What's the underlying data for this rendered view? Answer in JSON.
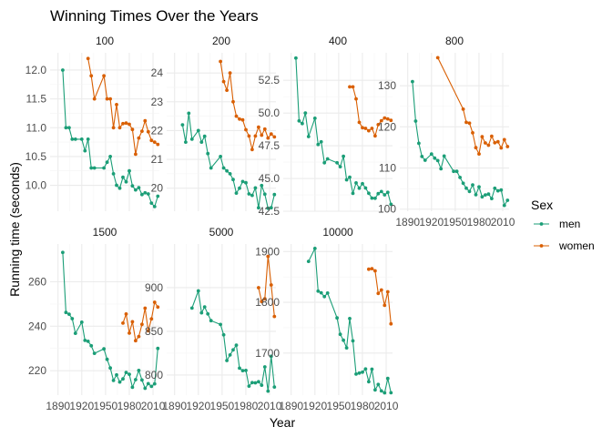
{
  "chart_data": {
    "type": "line",
    "title": "Winning Times Over the Years",
    "xlabel": "Year",
    "ylabel": "Running time (seconds)",
    "legend": {
      "title": "Sex",
      "position": "right"
    },
    "grid": true,
    "colors": {
      "men": "#1b9e77",
      "women": "#d95f02"
    },
    "x_ticks": [
      "1890",
      "1920",
      "1950",
      "1980",
      "2010"
    ],
    "xlim": [
      1880,
      2018
    ],
    "panels": [
      {
        "name": "100",
        "ylim": [
          9.55,
          12.3
        ],
        "y_ticks": [
          10.0,
          10.5,
          11.0,
          11.5,
          12.0
        ],
        "y_tick_labels": [
          "10.0",
          "10.5",
          "11.0",
          "11.5",
          "12.0"
        ],
        "series": [
          {
            "name": "men",
            "x": [
              1896,
              1900,
              1904,
              1908,
              1912,
              1920,
              1924,
              1928,
              1932,
              1936,
              1948,
              1952,
              1956,
              1960,
              1964,
              1968,
              1972,
              1976,
              1980,
              1984,
              1988,
              1992,
              1996,
              2000,
              2004,
              2008,
              2012,
              2016
            ],
            "y": [
              12.0,
              11.0,
              11.0,
              10.8,
              10.8,
              10.8,
              10.6,
              10.8,
              10.3,
              10.3,
              10.3,
              10.4,
              10.5,
              10.2,
              10.0,
              9.95,
              10.14,
              10.06,
              10.25,
              9.99,
              9.92,
              9.96,
              9.84,
              9.87,
              9.85,
              9.69,
              9.63,
              9.81
            ]
          },
          {
            "name": "women",
            "x": [
              1928,
              1932,
              1936,
              1948,
              1952,
              1956,
              1960,
              1964,
              1968,
              1972,
              1976,
              1980,
              1984,
              1988,
              1992,
              1996,
              2000,
              2004,
              2008,
              2012,
              2016
            ],
            "y": [
              12.2,
              11.9,
              11.5,
              11.9,
              11.5,
              11.5,
              11.0,
              11.4,
              11.0,
              11.07,
              11.08,
              11.06,
              10.97,
              10.54,
              10.82,
              10.94,
              11.12,
              10.93,
              10.78,
              10.75,
              10.71
            ]
          }
        ]
      },
      {
        "name": "200",
        "ylim": [
          19.2,
          24.7
        ],
        "y_ticks": [
          20,
          21,
          22,
          23,
          24
        ],
        "y_tick_labels": [
          "20",
          "21",
          "22",
          "23",
          "24"
        ],
        "series": [
          {
            "name": "men",
            "x": [
              1900,
              1904,
              1908,
              1912,
              1920,
              1924,
              1928,
              1932,
              1936,
              1948,
              1952,
              1956,
              1960,
              1964,
              1968,
              1972,
              1976,
              1980,
              1984,
              1988,
              1992,
              1996,
              2000,
              2004,
              2008,
              2012,
              2016
            ],
            "y": [
              22.2,
              21.6,
              22.6,
              21.7,
              22.0,
              21.6,
              21.8,
              21.2,
              20.7,
              21.1,
              20.7,
              20.6,
              20.5,
              20.3,
              19.83,
              20.0,
              20.23,
              20.19,
              19.8,
              19.75,
              20.01,
              19.32,
              20.09,
              19.79,
              19.3,
              19.32,
              19.78
            ]
          },
          {
            "name": "women",
            "x": [
              1948,
              1952,
              1956,
              1960,
              1964,
              1968,
              1972,
              1976,
              1980,
              1984,
              1988,
              1992,
              1996,
              2000,
              2004,
              2008,
              2012,
              2016
            ],
            "y": [
              24.4,
              23.7,
              23.4,
              24.0,
              23.0,
              22.5,
              22.4,
              22.37,
              22.03,
              21.81,
              21.34,
              21.81,
              22.12,
              21.84,
              22.05,
              21.74,
              21.88,
              21.78
            ]
          }
        ]
      },
      {
        "name": "400",
        "ylim": [
          42.5,
          54.6
        ],
        "y_ticks": [
          42.5,
          45.0,
          47.5,
          50.0,
          52.5
        ],
        "y_tick_labels": [
          "42.5",
          "45.0",
          "47.5",
          "50.0",
          "52.5"
        ],
        "series": [
          {
            "name": "men",
            "x": [
              1896,
              1900,
              1904,
              1908,
              1912,
              1920,
              1924,
              1928,
              1932,
              1936,
              1948,
              1952,
              1956,
              1960,
              1964,
              1968,
              1972,
              1976,
              1980,
              1984,
              1988,
              1992,
              1996,
              2000,
              2004,
              2008,
              2012,
              2016
            ],
            "y": [
              54.2,
              49.4,
              49.2,
              50.0,
              48.2,
              49.6,
              47.6,
              47.8,
              46.2,
              46.5,
              46.2,
              45.9,
              46.7,
              44.9,
              45.1,
              43.86,
              44.66,
              44.26,
              44.6,
              44.27,
              43.87,
              43.5,
              43.49,
              43.84,
              44.0,
              43.75,
              43.94,
              43.03
            ]
          },
          {
            "name": "women",
            "x": [
              1964,
              1968,
              1972,
              1976,
              1980,
              1984,
              1988,
              1992,
              1996,
              2000,
              2004,
              2008,
              2012,
              2016
            ],
            "y": [
              52.0,
              52.0,
              51.08,
              49.29,
              48.88,
              48.83,
              48.65,
              48.83,
              48.25,
              49.11,
              49.41,
              49.62,
              49.55,
              49.44
            ]
          }
        ]
      },
      {
        "name": "800",
        "ylim": [
          99.5,
          138
        ],
        "y_ticks": [
          100,
          110,
          120,
          130
        ],
        "y_tick_labels": [
          "100",
          "110",
          "120",
          "130"
        ],
        "series": [
          {
            "name": "men",
            "x": [
              1896,
              1900,
              1904,
              1908,
              1912,
              1920,
              1924,
              1928,
              1932,
              1936,
              1948,
              1952,
              1956,
              1960,
              1964,
              1968,
              1972,
              1976,
              1980,
              1984,
              1988,
              1992,
              1996,
              2000,
              2004,
              2008,
              2012,
              2016
            ],
            "y": [
              131.0,
              121.4,
              116.0,
              112.8,
              111.9,
              113.4,
              112.4,
              111.8,
              109.8,
              112.9,
              109.2,
              109.2,
              107.7,
              106.3,
              105.1,
              104.3,
              105.9,
              103.5,
              105.4,
              103.0,
              103.45,
              103.66,
              102.58,
              105.08,
              104.45,
              104.65,
              100.91,
              102.15
            ]
          },
          {
            "name": "women",
            "x": [
              1928,
              1960,
              1964,
              1968,
              1972,
              1976,
              1980,
              1984,
              1988,
              1992,
              1996,
              2000,
              2004,
              2008,
              2012,
              2016
            ],
            "y": [
              136.8,
              124.3,
              121.1,
              120.9,
              118.55,
              114.94,
              113.42,
              117.6,
              116.1,
              115.54,
              117.73,
              116.15,
              116.38,
              114.87,
              116.9,
              115.22
            ]
          }
        ]
      },
      {
        "name": "1500",
        "ylim": [
          209,
          277
        ],
        "y_ticks": [
          220,
          240,
          260
        ],
        "y_tick_labels": [
          "220",
          "240",
          "260"
        ],
        "series": [
          {
            "name": "men",
            "x": [
              1896,
              1900,
              1904,
              1908,
              1912,
              1920,
              1924,
              1928,
              1932,
              1936,
              1948,
              1952,
              1956,
              1960,
              1964,
              1968,
              1972,
              1976,
              1980,
              1984,
              1988,
              1992,
              1996,
              2000,
              2004,
              2008,
              2012,
              2016
            ],
            "y": [
              273.2,
              246.2,
              245.4,
              243.4,
              236.8,
              241.8,
              233.6,
              233.2,
              231.2,
              227.8,
              229.8,
              225.1,
              221.2,
              215.6,
              218.1,
              214.9,
              216.3,
              219.2,
              218.4,
              212.53,
              215.96,
              220.12,
              215.78,
              212.07,
              214.18,
              212.94,
              214.08,
              230.0
            ]
          },
          {
            "name": "women",
            "x": [
              1972,
              1976,
              1980,
              1984,
              1988,
              1992,
              1996,
              2000,
              2004,
              2008,
              2012,
              2016
            ],
            "y": [
              241.4,
              245.5,
              236.9,
              242.0,
              233.5,
              235.4,
              240.83,
              248.12,
              237.9,
              243.3,
              250.8,
              248.6
            ]
          }
        ]
      },
      {
        "name": "5000",
        "ylim": [
          777,
          950
        ],
        "y_ticks": [
          800,
          850,
          900
        ],
        "y_tick_labels": [
          "800",
          "850",
          "900"
        ],
        "series": [
          {
            "name": "men",
            "x": [
              1912,
              1920,
              1924,
              1928,
              1932,
              1936,
              1948,
              1952,
              1956,
              1960,
              1964,
              1968,
              1972,
              1976,
              1980,
              1984,
              1988,
              1992,
              1996,
              2000,
              2004,
              2008,
              2012,
              2016
            ],
            "y": [
              876.6,
              896.3,
              871.2,
              878.0,
              870.0,
              862.2,
              857.9,
              846.0,
              816.6,
              823.0,
              828.8,
              834.2,
              807.8,
              805.0,
              805.2,
              787.3,
              791.3,
              791.12,
              792.3,
              788.4,
              809.32,
              781.55,
              821.37,
              786.3
            ]
          },
          {
            "name": "women",
            "x": [
              1996,
              2000,
              2004,
              2008,
              2012,
              2016
            ],
            "y": [
              900.0,
              884.0,
              887.4,
              935.8,
              903.1,
              867.0
            ]
          }
        ]
      },
      {
        "name": "10000",
        "ylim": [
          1617,
          1915
        ],
        "y_ticks": [
          1700,
          1800,
          1900
        ],
        "y_tick_labels": [
          "1700",
          "1800",
          "1900"
        ],
        "series": [
          {
            "name": "men",
            "x": [
              1912,
              1920,
              1924,
              1928,
              1932,
              1936,
              1948,
              1952,
              1956,
              1960,
              1964,
              1968,
              1972,
              1976,
              1980,
              1984,
              1988,
              1992,
              1996,
              2000,
              2004,
              2008,
              2012,
              2016
            ],
            "y": [
              1880.8,
              1906.2,
              1822.0,
              1818.8,
              1811.2,
              1818.2,
              1769.2,
              1737.0,
              1725.2,
              1710.2,
              1768.0,
              1724.0,
              1658.4,
              1660.4,
              1662.2,
              1668.5,
              1643.4,
              1668.2,
              1627.3,
              1638.0,
              1625.2,
              1621.5,
              1649.8,
              1621.6
            ]
          },
          {
            "name": "women",
            "x": [
              1988,
              1992,
              1996,
              2000,
              2004,
              2008,
              2012,
              2016
            ],
            "y": [
              1865.2,
              1866.4,
              1862.0,
              1817.5,
              1824.4,
              1794.0,
              1820.8,
              1757.5
            ]
          }
        ]
      }
    ]
  }
}
